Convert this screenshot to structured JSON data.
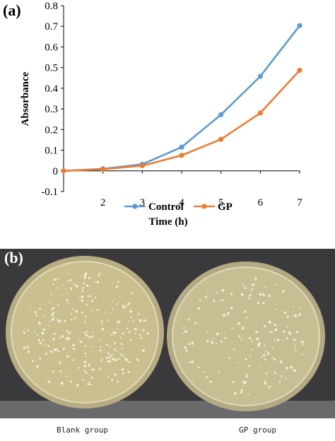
{
  "panel_a_label": "(a)",
  "panel_b_label": "(b)",
  "chart_data": {
    "type": "line",
    "x": [
      1,
      2,
      3,
      4,
      5,
      6,
      7
    ],
    "xticks": [
      "2",
      "3",
      "4",
      "5",
      "6",
      "7"
    ],
    "xlabel": "Time (h)",
    "ylabel": "Absorbance",
    "ylim": [
      -0.1,
      0.8
    ],
    "yticks": [
      "-0.1",
      "0",
      "0.1",
      "0.2",
      "0.3",
      "0.4",
      "0.5",
      "0.6",
      "0.7",
      "0.8"
    ],
    "grid": false,
    "legend_position": "bottom",
    "series": [
      {
        "name": "Control",
        "color": "#5b9bd5",
        "values": [
          0,
          0.01,
          0.032,
          0.115,
          0.272,
          0.458,
          0.703
        ]
      },
      {
        "name": "GP",
        "color": "#ed7d31",
        "values": [
          0,
          0.008,
          0.025,
          0.075,
          0.153,
          0.28,
          0.487
        ]
      }
    ]
  },
  "photo": {
    "captions": {
      "blank": "Blank group",
      "gp": "GP group"
    },
    "background": "#3a3a3c",
    "agar_color": "#c9bf8f"
  }
}
